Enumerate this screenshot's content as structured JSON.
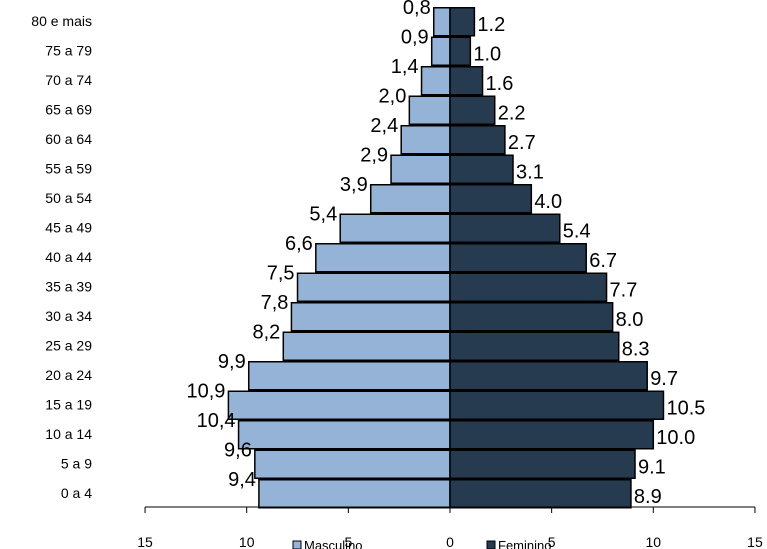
{
  "chart_data": {
    "type": "bar",
    "orientation": "horizontal",
    "layout": "population-pyramid",
    "categories": [
      "0 a 4",
      "5 a 9",
      "10 a 14",
      "15 a 19",
      "20 a 24",
      "25 a 29",
      "30 a 34",
      "35 a 39",
      "40 a 44",
      "45 a 49",
      "50 a 54",
      "55 a 59",
      "60 a 64",
      "65 a 69",
      "70 a 74",
      "75 a 79",
      "80 e mais"
    ],
    "series": [
      {
        "name": "Masculino",
        "color": "#95b3d7",
        "side": "left",
        "values": [
          9.4,
          9.6,
          10.4,
          10.9,
          9.9,
          8.2,
          7.8,
          7.5,
          6.6,
          5.4,
          3.9,
          2.9,
          2.4,
          2.0,
          1.4,
          0.9,
          0.8
        ],
        "labels": [
          "9,4",
          "9,6",
          "10,4",
          "10,9",
          "9,9",
          "8,2",
          "7,8",
          "7,5",
          "6,6",
          "5,4",
          "3,9",
          "2,9",
          "2,4",
          "2,0",
          "1,4",
          "0,9",
          "0,8"
        ]
      },
      {
        "name": "Feminino",
        "color": "#263b50",
        "side": "right",
        "values": [
          8.9,
          9.1,
          10.0,
          10.5,
          9.7,
          8.3,
          8.0,
          7.7,
          6.7,
          5.4,
          4.0,
          3.1,
          2.7,
          2.2,
          1.6,
          1.0,
          1.2
        ],
        "labels": [
          "8.9",
          "9.1",
          "10.0",
          "10.5",
          "9.7",
          "8.3",
          "8.0",
          "7.7",
          "6.7",
          "5.4",
          "4.0",
          "3.1",
          "2.7",
          "2.2",
          "1.6",
          "1.0",
          "1.2"
        ]
      }
    ],
    "xlim": [
      -15,
      15
    ],
    "x_ticks": [
      -15,
      -10,
      -5,
      0,
      5,
      10,
      15
    ],
    "x_tick_labels": [
      "15",
      "10",
      "5",
      "0",
      "5",
      "10",
      "15"
    ],
    "legend": {
      "placement": "bottom",
      "entries": [
        "Masculino",
        "Feminino"
      ]
    },
    "grid": false,
    "title": "",
    "xlabel": "",
    "ylabel": ""
  }
}
